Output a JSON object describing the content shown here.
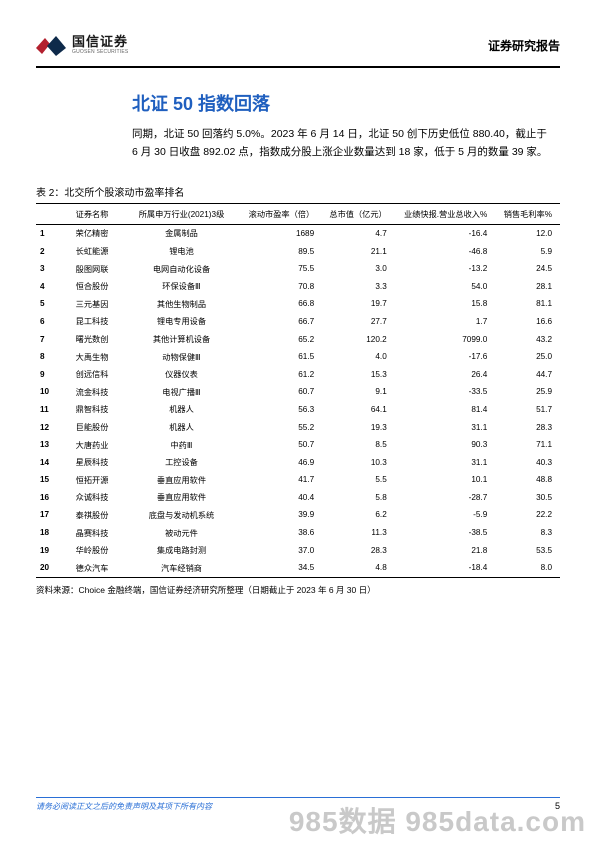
{
  "header": {
    "logo_cn": "国信证券",
    "logo_en": "GUOSEN SECURITIES",
    "doc_type": "证券研究报告",
    "logo_colors": {
      "red": "#b3202e",
      "navy": "#0e2a4a"
    }
  },
  "section": {
    "title": "北证 50 指数回落",
    "paragraph": "同期，北证 50 回落约 5.0%。2023 年 6 月 14 日，北证 50 创下历史低位 880.40，截止于 6 月 30 日收盘 892.02 点，指数成分股上涨企业数量达到 18 家，低于 5 月的数量 39 家。"
  },
  "table": {
    "caption": "表 2：北交所个股滚动市盈率排名",
    "columns": [
      "",
      "证券名称",
      "所属申万行业(2021)3级",
      "滚动市盈率（倍）",
      "总市值（亿元）",
      "业绩快报.营业总收入%",
      "销售毛利率%"
    ],
    "rows": [
      [
        "1",
        "荣亿精密",
        "金属制品",
        "1689",
        "4.7",
        "-16.4",
        "12.0"
      ],
      [
        "2",
        "长虹能源",
        "锂电池",
        "89.5",
        "21.1",
        "-46.8",
        "5.9"
      ],
      [
        "3",
        "殷图网联",
        "电网自动化设备",
        "75.5",
        "3.0",
        "-13.2",
        "24.5"
      ],
      [
        "4",
        "恒合股份",
        "环保设备Ⅲ",
        "70.8",
        "3.3",
        "54.0",
        "28.1"
      ],
      [
        "5",
        "三元基因",
        "其他生物制品",
        "66.8",
        "19.7",
        "15.8",
        "81.1"
      ],
      [
        "6",
        "昆工科技",
        "锂电专用设备",
        "66.7",
        "27.7",
        "1.7",
        "16.6"
      ],
      [
        "7",
        "曙光数创",
        "其他计算机设备",
        "65.2",
        "120.2",
        "7099.0",
        "43.2"
      ],
      [
        "8",
        "大禹生物",
        "动物保健Ⅲ",
        "61.5",
        "4.0",
        "-17.6",
        "25.0"
      ],
      [
        "9",
        "创远信科",
        "仪器仪表",
        "61.2",
        "15.3",
        "26.4",
        "44.7"
      ],
      [
        "10",
        "流金科技",
        "电视广播Ⅲ",
        "60.7",
        "9.1",
        "-33.5",
        "25.9"
      ],
      [
        "11",
        "鼎智科技",
        "机器人",
        "56.3",
        "64.1",
        "81.4",
        "51.7"
      ],
      [
        "12",
        "巨能股份",
        "机器人",
        "55.2",
        "19.3",
        "31.1",
        "28.3"
      ],
      [
        "13",
        "大唐药业",
        "中药Ⅲ",
        "50.7",
        "8.5",
        "90.3",
        "71.1"
      ],
      [
        "14",
        "星辰科技",
        "工控设备",
        "46.9",
        "10.3",
        "31.1",
        "40.3"
      ],
      [
        "15",
        "恒拓开源",
        "垂直应用软件",
        "41.7",
        "5.5",
        "10.1",
        "48.8"
      ],
      [
        "16",
        "众诚科技",
        "垂直应用软件",
        "40.4",
        "5.8",
        "-28.7",
        "30.5"
      ],
      [
        "17",
        "泰祺股份",
        "底盘与发动机系统",
        "39.9",
        "6.2",
        "-5.9",
        "22.2"
      ],
      [
        "18",
        "晶赛科技",
        "被动元件",
        "38.6",
        "11.3",
        "-38.5",
        "8.3"
      ],
      [
        "19",
        "华岭股份",
        "集成电路封测",
        "37.0",
        "28.3",
        "21.8",
        "53.5"
      ],
      [
        "20",
        "德众汽车",
        "汽车经销商",
        "34.5",
        "4.8",
        "-18.4",
        "8.0"
      ]
    ],
    "source": "资料来源：Choice 金融终端，国信证券经济研究所整理（日期截止于 2023 年 6 月 30 日）"
  },
  "footer": {
    "disclaimer": "请务必阅读正文之后的免责声明及其项下所有内容",
    "page": "5"
  },
  "watermark": "985数据 985data.com"
}
